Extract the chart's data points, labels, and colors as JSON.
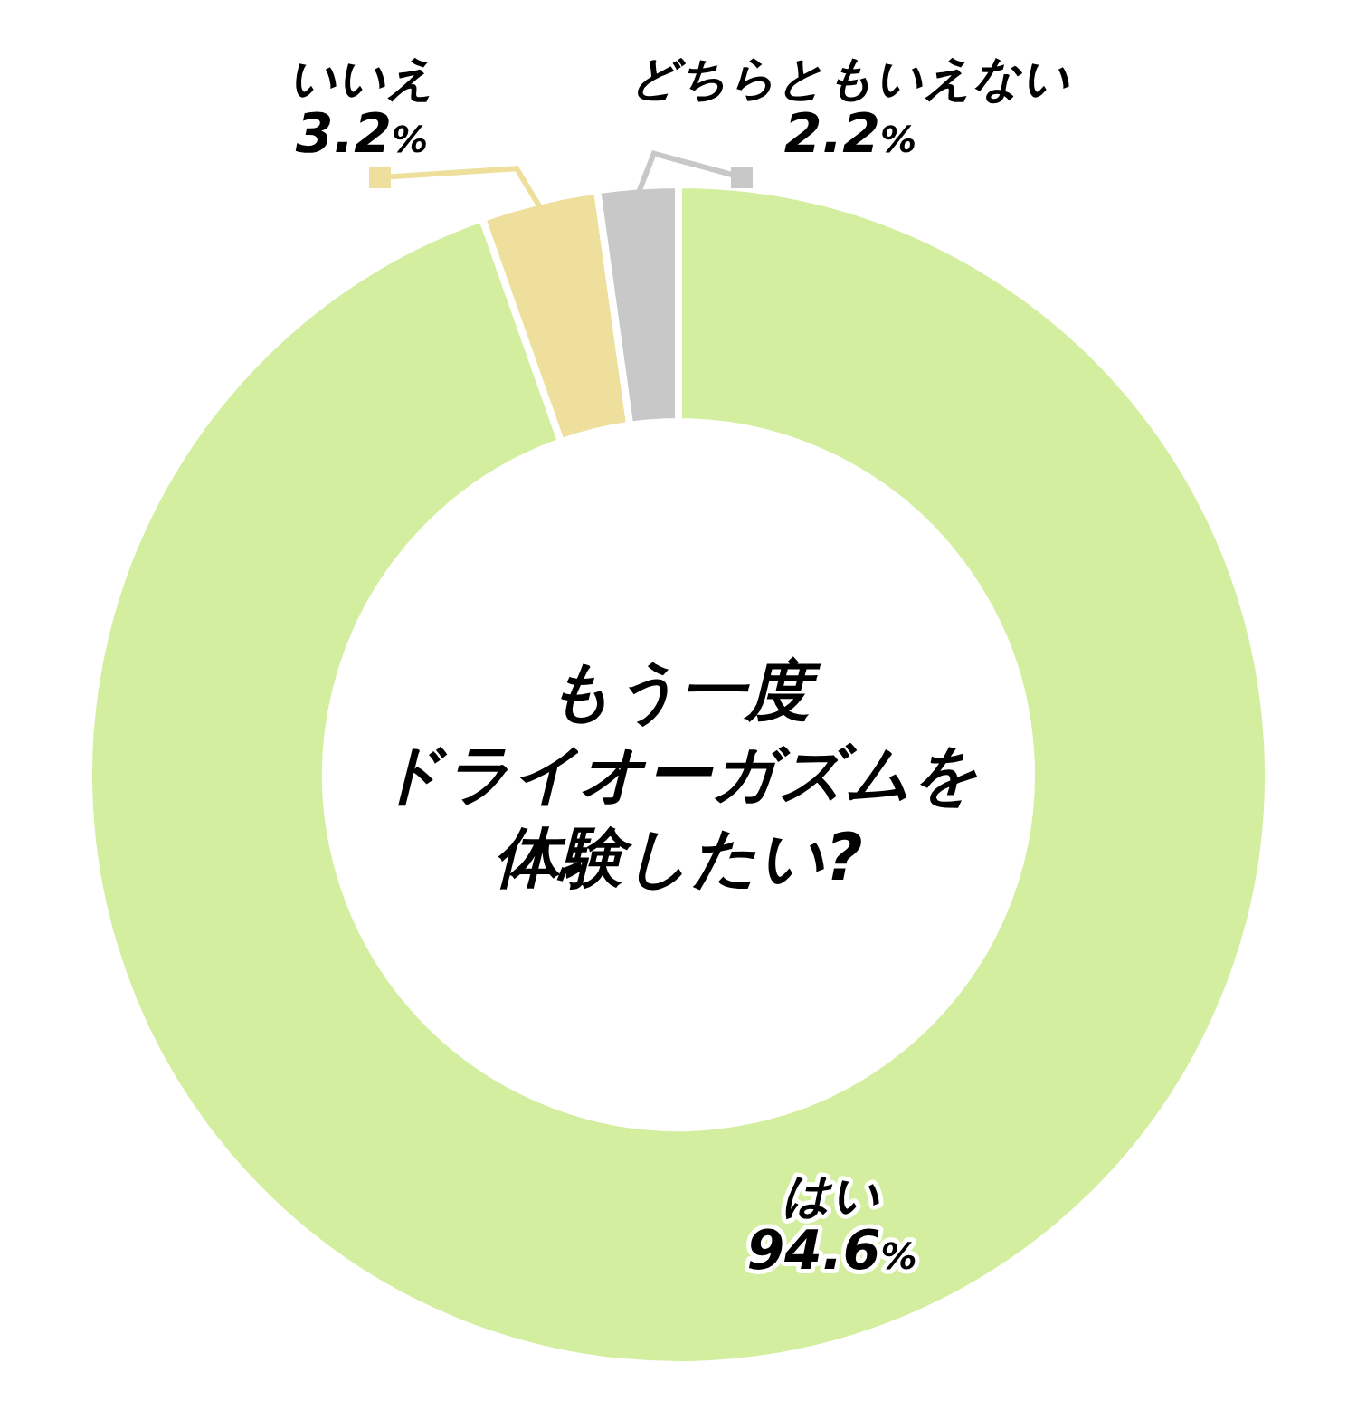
{
  "chart_data": {
    "type": "donut",
    "annotations": [
      "もう一度",
      "ドライオーガズムを",
      "体験したい?"
    ],
    "categories": [
      "はい",
      "いいえ",
      "どちらともいえない"
    ],
    "values": [
      94.6,
      3.2,
      2.2
    ],
    "value_labels": [
      "94.6%",
      "3.2%",
      "2.2%"
    ],
    "colors": [
      "#d4eea0",
      "#eedf9c",
      "#c8c8c8"
    ]
  }
}
